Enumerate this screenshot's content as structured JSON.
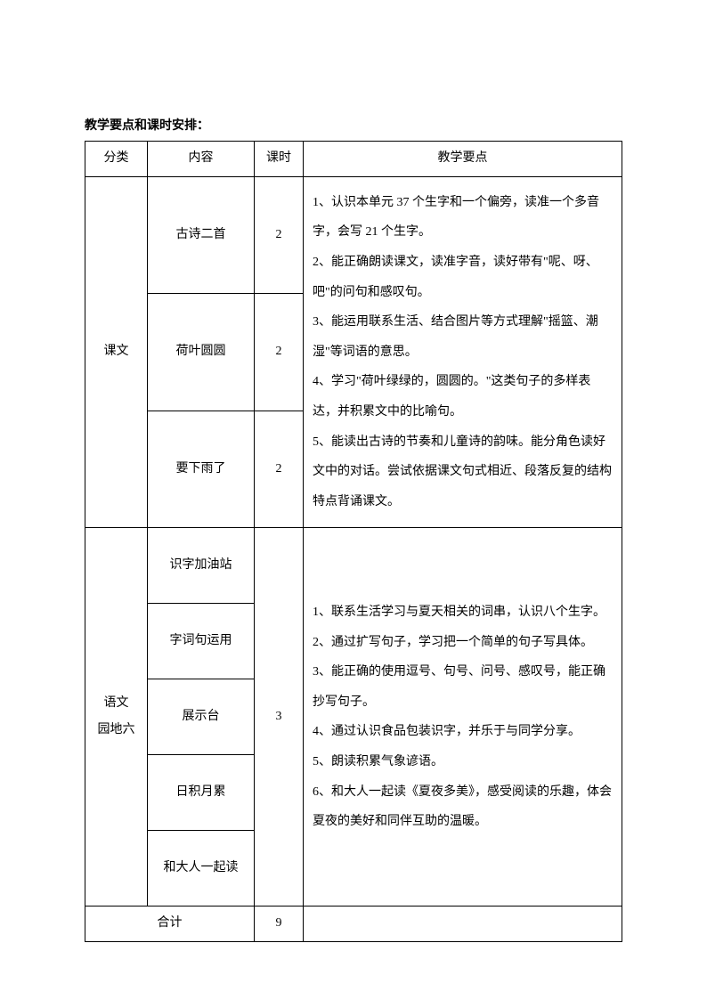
{
  "title": "教学要点和课时安排：",
  "headers": {
    "category": "分类",
    "content": "内容",
    "hours": "课时",
    "points": "教学要点"
  },
  "section1": {
    "category": "课文",
    "items": [
      {
        "content": "古诗二首",
        "hours": "2"
      },
      {
        "content": "荷叶圆圆",
        "hours": "2"
      },
      {
        "content": "要下雨了",
        "hours": "2"
      }
    ],
    "points": "1、认识本单元 37 个生字和一个偏旁，读准一个多音字，会写 21 个生字。\n2、能正确朗读课文，读准字音，读好带有\"呢、呀、吧\"的问句和感叹句。\n3、能运用联系生活、结合图片等方式理解\"摇篮、潮湿\"等词语的意思。\n4、学习\"荷叶绿绿的，圆圆的。\"这类句子的多样表达，并积累文中的比喻句。\n5、能读出古诗的节奏和儿童诗的韵味。能分角色读好文中的对话。尝试依据课文句式相近、段落反复的结构特点背诵课文。"
  },
  "section2": {
    "category": "语文园地六",
    "hours": "3",
    "items": [
      {
        "content": "识字加油站"
      },
      {
        "content": "字词句运用"
      },
      {
        "content": "展示台"
      },
      {
        "content": "日积月累"
      },
      {
        "content": "和大人一起读"
      }
    ],
    "points": "1、联系生活学习与夏天相关的词串，认识八个生字。\n2、通过扩写句子，学习把一个简单的句子写具体。\n3、能正确的使用逗号、句号、问号、感叹号，能正确抄写句子。\n4、通过认识食品包装识字，并乐于与同学分享。\n5、朗读积累气象谚语。\n6、和大人一起读《夏夜多美》，感受阅读的乐趣，体会夏夜的美好和同伴互助的温暖。"
  },
  "total": {
    "label": "合计",
    "hours": "9"
  }
}
